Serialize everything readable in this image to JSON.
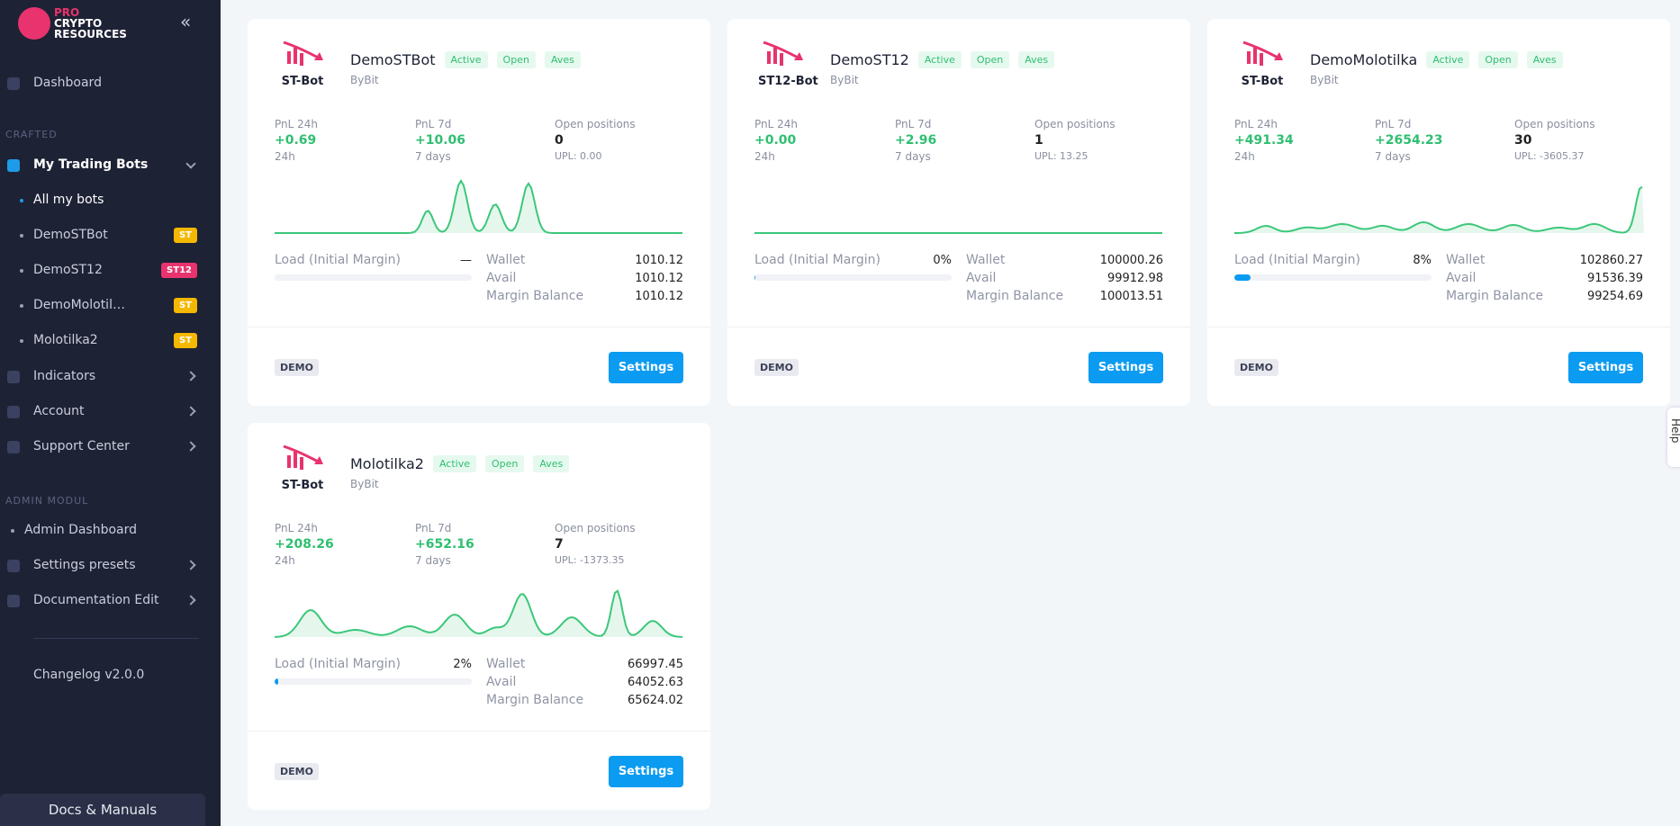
{
  "sidebar": {
    "brand": [
      "PRO",
      "CRYPTO",
      "RESOURCES"
    ],
    "dashboard": "Dashboard",
    "section1": "CRAFTED",
    "trading": "My Trading Bots",
    "all_bots": "All my bots",
    "bots": [
      {
        "name": "DemoSTBot",
        "badge": "ST"
      },
      {
        "name": "DemoST12",
        "badge": "ST12"
      },
      {
        "name": "DemoMolotil…",
        "badge": "ST"
      },
      {
        "name": "Molotilka2",
        "badge": "ST"
      }
    ],
    "menu1": [
      "Indicators",
      "Account",
      "Support Center"
    ],
    "section2": "ADMIN MODUL",
    "admin_dashboard": "Admin Dashboard",
    "menu2": [
      "Settings presets",
      "Documentation Edit"
    ],
    "changelog": "Changelog v2.0.0",
    "docs": "Docs & Manuals"
  },
  "labels": {
    "pnl24": "PnL 24h",
    "sub24": "24h",
    "pnl7": "PnL 7d",
    "sub7": "7 days",
    "open": "Open positions",
    "load": "Load (Initial Margin)",
    "wallet": "Wallet",
    "avail": "Avail",
    "margin": "Margin Balance"
  },
  "help": "Help",
  "cards": [
    {
      "logo": "ST-Bot",
      "name": "DemoSTBot",
      "tags": [
        "Active",
        "Open",
        "Aves"
      ],
      "exchange": "ByBit",
      "pnl24": "+0.69",
      "pnl7": "+10.06",
      "open": "0",
      "upl": "UPL: 0.00",
      "load": "—",
      "wallet": "1010.12",
      "avail": "1010.12",
      "margin": "1010.12",
      "mode": "DEMO",
      "button": "Settings"
    },
    {
      "logo": "ST12-Bot",
      "name": "DemoST12",
      "tags": [
        "Active",
        "Open",
        "Aves"
      ],
      "exchange": "ByBit",
      "pnl24": "+0.00",
      "pnl7": "+2.96",
      "open": "1",
      "upl": "UPL: 13.25",
      "load": "0%",
      "wallet": "100000.26",
      "avail": "99912.98",
      "margin": "100013.51",
      "mode": "DEMO",
      "button": "Settings"
    },
    {
      "logo": "ST-Bot",
      "name": "DemoMolotilka",
      "tags": [
        "Active",
        "Open",
        "Aves"
      ],
      "exchange": "ByBit",
      "pnl24": "+491.34",
      "pnl7": "+2654.23",
      "open": "30",
      "upl": "UPL: -3605.37",
      "load": "8%",
      "wallet": "102860.27",
      "avail": "91536.39",
      "margin": "99254.69",
      "mode": "DEMO",
      "button": "Settings"
    },
    {
      "logo": "ST-Bot",
      "name": "Molotilka2",
      "tags": [
        "Active",
        "Open",
        "Aves"
      ],
      "exchange": "ByBit",
      "pnl24": "+208.26",
      "pnl7": "+652.16",
      "open": "7",
      "upl": "UPL: -1373.35",
      "load": "2%",
      "wallet": "66997.45",
      "avail": "64052.63",
      "margin": "65624.02",
      "mode": "DEMO",
      "button": "Settings"
    }
  ]
}
